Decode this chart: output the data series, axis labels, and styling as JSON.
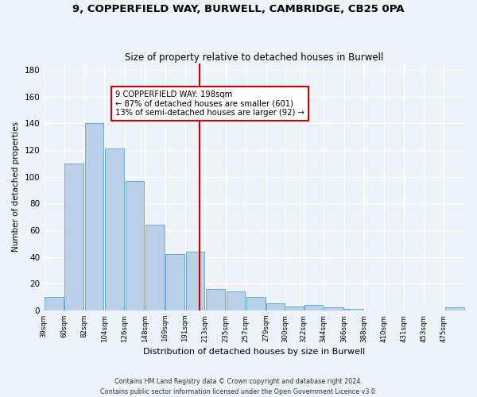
{
  "title": "9, COPPERFIELD WAY, BURWELL, CAMBRIDGE, CB25 0PA",
  "subtitle": "Size of property relative to detached houses in Burwell",
  "xlabel": "Distribution of detached houses by size in Burwell",
  "ylabel": "Number of detached properties",
  "categories": [
    "39sqm",
    "60sqm",
    "82sqm",
    "104sqm",
    "126sqm",
    "148sqm",
    "169sqm",
    "191sqm",
    "213sqm",
    "235sqm",
    "257sqm",
    "279sqm",
    "300sqm",
    "322sqm",
    "344sqm",
    "366sqm",
    "388sqm",
    "410sqm",
    "431sqm",
    "453sqm",
    "475sqm"
  ],
  "bar_heights": [
    10,
    110,
    140,
    121,
    97,
    64,
    42,
    44,
    16,
    14,
    10,
    5,
    3,
    4,
    2,
    1,
    0,
    0,
    0,
    0,
    2
  ],
  "bar_color": "#b8d0e8",
  "bar_edge_color": "#6aaad4",
  "vline_color": "#cc0000",
  "annotation_text": "9 COPPERFIELD WAY: 198sqm\n← 87% of detached houses are smaller (601)\n13% of semi-detached houses are larger (92) →",
  "ylim": [
    0,
    185
  ],
  "background_color": "#eef2f9",
  "grid_color": "#ffffff",
  "footer": "Contains HM Land Registry data © Crown copyright and database right 2024.\nContains public sector information licensed under the Open Government Licence v3.0."
}
